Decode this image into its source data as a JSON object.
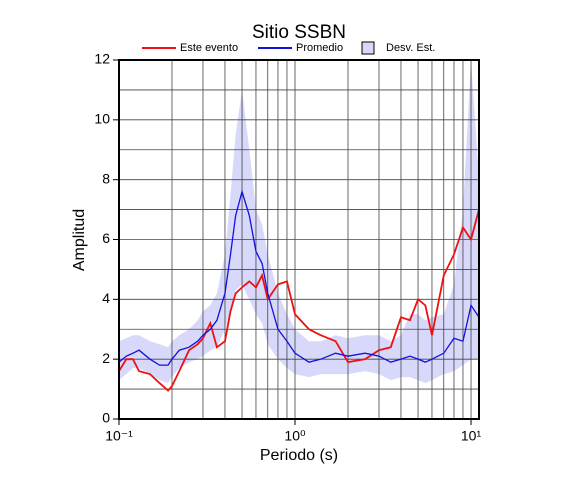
{
  "chart_data": {
    "type": "line",
    "title": "Sitio SSBN",
    "xlabel": "Periodo (s)",
    "ylabel": "Amplitud",
    "xscale": "log",
    "xlim": [
      0.1,
      11.1
    ],
    "ylim": [
      0,
      12
    ],
    "xticks": [
      {
        "value": 0.1,
        "label": "10⁻¹"
      },
      {
        "value": 1,
        "label": "10⁰"
      },
      {
        "value": 10,
        "label": "10¹"
      }
    ],
    "xminor": [
      0.2,
      0.3,
      0.4,
      0.5,
      0.6,
      0.7,
      0.8,
      0.9,
      2,
      3,
      4,
      5,
      6,
      7,
      8,
      9
    ],
    "yticks": [
      0,
      2,
      4,
      6,
      8,
      10,
      12
    ],
    "yminor": [
      1,
      3,
      5,
      7,
      9,
      11
    ],
    "grid": true,
    "x": [
      0.1,
      0.11,
      0.12,
      0.13,
      0.15,
      0.17,
      0.19,
      0.2,
      0.22,
      0.25,
      0.28,
      0.3,
      0.33,
      0.36,
      0.4,
      0.43,
      0.46,
      0.5,
      0.55,
      0.6,
      0.65,
      0.7,
      0.8,
      0.9,
      1.0,
      1.2,
      1.4,
      1.7,
      2.0,
      2.5,
      3.0,
      3.5,
      4.0,
      4.5,
      5.0,
      5.5,
      6.0,
      7.0,
      8.0,
      9.0,
      10.0,
      11.1
    ],
    "band": {
      "name": "Desv. Est.",
      "color": "#d8d8fa",
      "upper": [
        2.6,
        2.7,
        2.8,
        2.8,
        2.6,
        2.5,
        2.4,
        2.6,
        2.8,
        3.0,
        3.3,
        3.6,
        3.8,
        4.2,
        5.5,
        7.5,
        9.5,
        11.0,
        9.0,
        7.0,
        6.5,
        5.5,
        4.2,
        3.5,
        3.0,
        2.6,
        2.6,
        2.8,
        2.7,
        2.8,
        2.8,
        2.6,
        2.8,
        3.5,
        3.5,
        3.3,
        3.4,
        3.5,
        4.5,
        7.0,
        12.0,
        8.0
      ],
      "lower": [
        1.3,
        1.5,
        1.7,
        1.7,
        1.5,
        1.3,
        1.2,
        1.4,
        1.7,
        1.9,
        2.0,
        2.1,
        2.3,
        2.4,
        3.0,
        3.6,
        4.3,
        4.5,
        4.0,
        3.5,
        3.2,
        2.5,
        2.0,
        1.7,
        1.5,
        1.4,
        1.5,
        1.5,
        1.5,
        1.6,
        1.5,
        1.3,
        1.4,
        1.4,
        1.3,
        1.2,
        1.3,
        1.5,
        1.6,
        1.8,
        2.0,
        2.0
      ]
    },
    "series": [
      {
        "name": "Este evento",
        "color": "#ee1111",
        "values": [
          1.6,
          2.0,
          2.0,
          1.6,
          1.5,
          1.2,
          0.95,
          1.1,
          1.6,
          2.3,
          2.5,
          2.7,
          3.2,
          2.4,
          2.6,
          3.6,
          4.2,
          4.4,
          4.6,
          4.4,
          4.8,
          4.0,
          4.5,
          4.6,
          3.5,
          3.0,
          2.8,
          2.6,
          1.9,
          2.0,
          2.3,
          2.4,
          3.4,
          3.3,
          4.0,
          3.8,
          2.8,
          4.8,
          5.5,
          6.4,
          6.0,
          7.0
        ]
      },
      {
        "name": "Promedio",
        "color": "#1111dd",
        "values": [
          1.9,
          2.1,
          2.2,
          2.3,
          2.0,
          1.8,
          1.8,
          2.0,
          2.3,
          2.4,
          2.6,
          2.8,
          3.0,
          3.3,
          4.2,
          5.5,
          6.8,
          7.6,
          6.8,
          5.6,
          5.2,
          4.2,
          3.0,
          2.6,
          2.2,
          1.9,
          2.0,
          2.2,
          2.1,
          2.2,
          2.1,
          1.9,
          2.0,
          2.1,
          2.0,
          1.9,
          2.0,
          2.2,
          2.7,
          2.6,
          3.8,
          3.4
        ]
      }
    ]
  }
}
